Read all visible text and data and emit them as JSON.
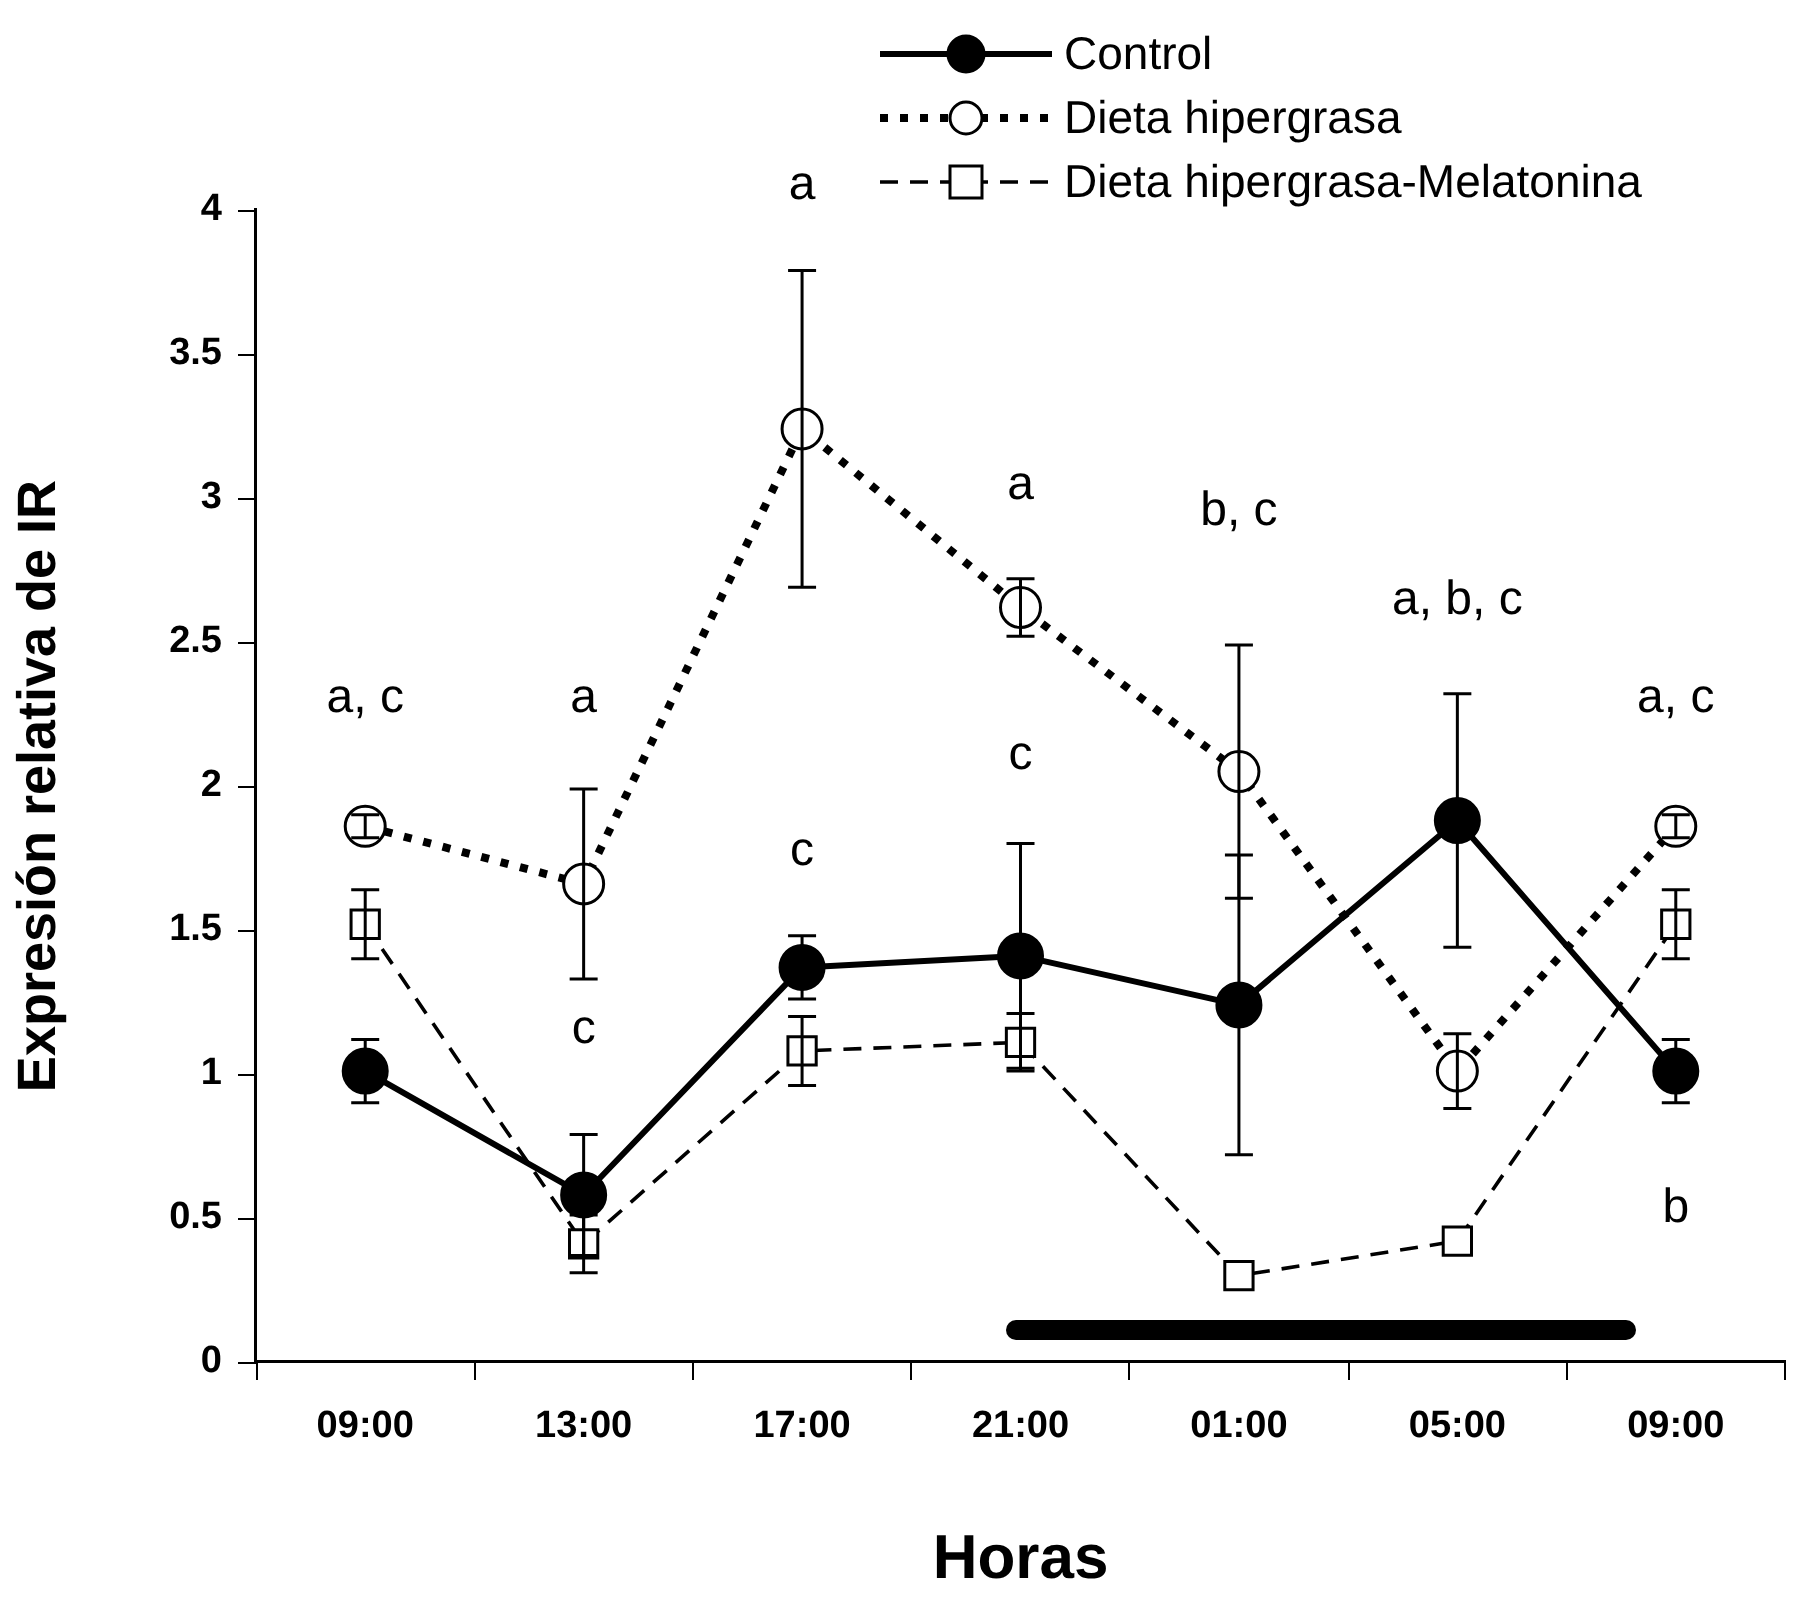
{
  "chart_data": {
    "type": "line",
    "xlabel": "Horas",
    "ylabel": "Expresión relativa de IR",
    "categories": [
      "09:00",
      "13:00",
      "17:00",
      "21:00",
      "01:00",
      "05:00",
      "09:00"
    ],
    "ylim": [
      0,
      4
    ],
    "yticks": [
      0,
      0.5,
      1,
      1.5,
      2,
      2.5,
      3,
      3.5,
      4
    ],
    "grid": false,
    "legend": "top right",
    "series": [
      {
        "name": "Control",
        "color": "#000000",
        "marker": "circle",
        "line_style": "solid",
        "values": [
          1.01,
          0.58,
          1.37,
          1.41,
          1.24,
          1.88,
          1.01
        ],
        "errors": [
          0.11,
          0.21,
          0.11,
          0.39,
          0.52,
          0.44,
          0.11
        ]
      },
      {
        "name": "Dieta hipergrasa",
        "color": "#000000",
        "marker": "circle",
        "line_style": "dotted",
        "values": [
          1.86,
          1.66,
          3.24,
          2.62,
          2.05,
          1.01,
          1.86
        ],
        "errors": [
          0.04,
          0.33,
          0.55,
          0.1,
          0.44,
          0.13,
          0.04
        ]
      },
      {
        "name": "Dieta hipergrasa-Melatonina",
        "color": "#000000",
        "marker": "square",
        "line_style": "dashed",
        "values": [
          1.52,
          0.41,
          1.08,
          1.11,
          0.3,
          0.42,
          1.52
        ],
        "errors": [
          0.12,
          0.1,
          0.12,
          0.1,
          null,
          null,
          0.12
        ]
      }
    ],
    "annotations": [
      "a, c",
      "a",
      "c",
      "a",
      "c",
      "a",
      "c",
      "b, c",
      "a, b, c",
      "a, c",
      "b"
    ]
  }
}
